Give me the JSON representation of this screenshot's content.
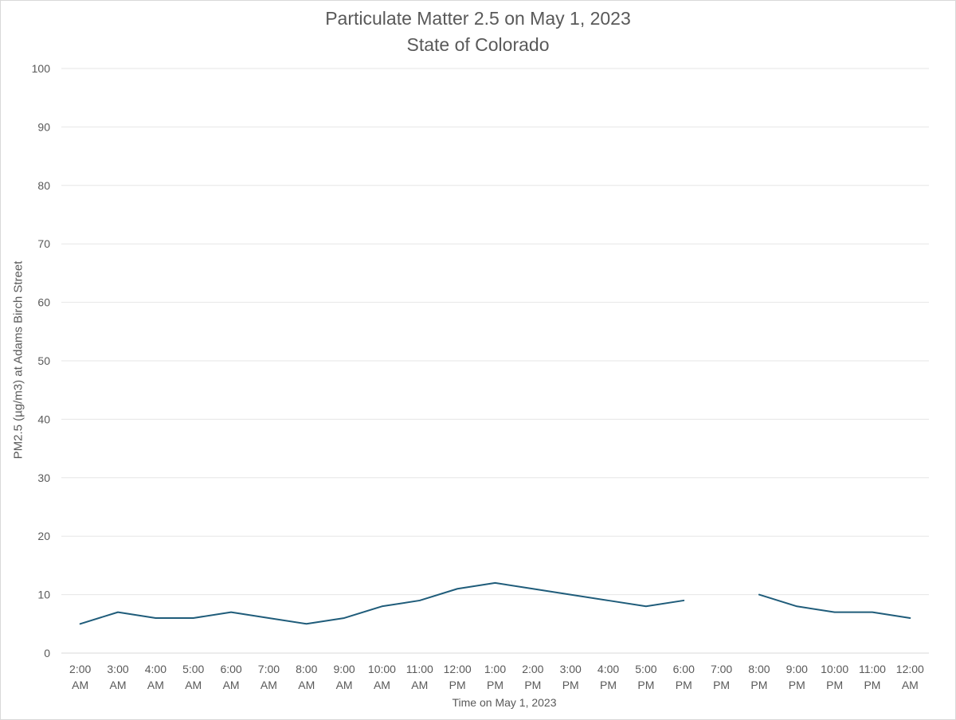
{
  "chart_data": {
    "type": "line",
    "title": "Particulate Matter 2.5 on May 1, 2023",
    "subtitle": "State of Colorado",
    "xlabel": "Time on May 1, 2023",
    "ylabel": "PM2.5 (µg/m3) at Adams Birch Street",
    "ylim": [
      0,
      100
    ],
    "yticks": [
      "0",
      "10",
      "20",
      "30",
      "40",
      "50",
      "60",
      "70",
      "80",
      "90",
      "100"
    ],
    "grid": true,
    "legend": "none",
    "categories": [
      [
        "2:00",
        "AM"
      ],
      [
        "3:00",
        "AM"
      ],
      [
        "4:00",
        "AM"
      ],
      [
        "5:00",
        "AM"
      ],
      [
        "6:00",
        "AM"
      ],
      [
        "7:00",
        "AM"
      ],
      [
        "8:00",
        "AM"
      ],
      [
        "9:00",
        "AM"
      ],
      [
        "10:00",
        "AM"
      ],
      [
        "11:00",
        "AM"
      ],
      [
        "12:00",
        "PM"
      ],
      [
        "1:00",
        "PM"
      ],
      [
        "2:00",
        "PM"
      ],
      [
        "3:00",
        "PM"
      ],
      [
        "4:00",
        "PM"
      ],
      [
        "5:00",
        "PM"
      ],
      [
        "6:00",
        "PM"
      ],
      [
        "7:00",
        "PM"
      ],
      [
        "8:00",
        "PM"
      ],
      [
        "9:00",
        "PM"
      ],
      [
        "10:00",
        "PM"
      ],
      [
        "11:00",
        "PM"
      ],
      [
        "12:00",
        "AM"
      ]
    ],
    "series": [
      {
        "values": [
          5,
          7,
          6,
          6,
          7,
          6,
          5,
          6,
          8,
          9,
          11,
          12,
          11,
          10,
          9,
          8,
          9,
          null,
          10,
          8,
          7,
          7,
          6
        ],
        "color": "#1f5c7a"
      }
    ],
    "gridline_color": "#e6e6e6"
  }
}
